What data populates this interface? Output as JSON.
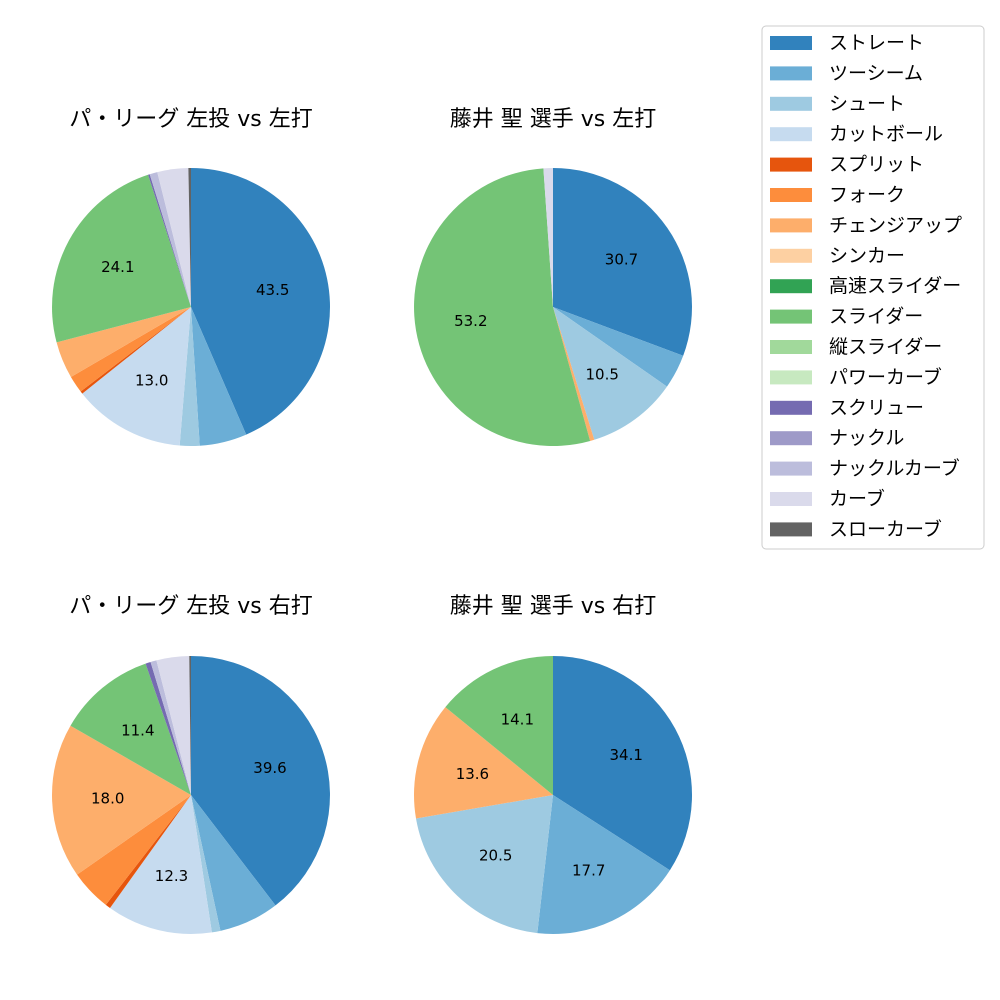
{
  "chart_data": [
    {
      "type": "pie",
      "title": "パ・リーグ 左投 vs 左打",
      "slices": [
        {
          "name": "ストレート",
          "value": 43.5,
          "label": "43.5"
        },
        {
          "name": "ツーシーム",
          "value": 5.5,
          "label": ""
        },
        {
          "name": "シュート",
          "value": 2.3,
          "label": ""
        },
        {
          "name": "カットボール",
          "value": 13.0,
          "label": "13.0"
        },
        {
          "name": "スプリット",
          "value": 0.3,
          "label": ""
        },
        {
          "name": "フォーク",
          "value": 2.0,
          "label": ""
        },
        {
          "name": "チェンジアップ",
          "value": 4.3,
          "label": ""
        },
        {
          "name": "スライダー",
          "value": 24.1,
          "label": "24.1"
        },
        {
          "name": "スクリュー",
          "value": 0.2,
          "label": ""
        },
        {
          "name": "ナックルカーブ",
          "value": 0.9,
          "label": ""
        },
        {
          "name": "カーブ",
          "value": 3.6,
          "label": ""
        },
        {
          "name": "スローカーブ",
          "value": 0.3,
          "label": ""
        }
      ]
    },
    {
      "type": "pie",
      "title": "藤井 聖 選手 vs 左打",
      "slices": [
        {
          "name": "ストレート",
          "value": 30.7,
          "label": "30.7"
        },
        {
          "name": "ツーシーム",
          "value": 4.0,
          "label": ""
        },
        {
          "name": "シュート",
          "value": 10.5,
          "label": "10.5"
        },
        {
          "name": "チェンジアップ",
          "value": 0.5,
          "label": ""
        },
        {
          "name": "スライダー",
          "value": 53.2,
          "label": "53.2"
        },
        {
          "name": "カーブ",
          "value": 1.1,
          "label": ""
        }
      ]
    },
    {
      "type": "pie",
      "title": "パ・リーグ 左投 vs 右打",
      "slices": [
        {
          "name": "ストレート",
          "value": 39.6,
          "label": "39.6"
        },
        {
          "name": "ツーシーム",
          "value": 7.0,
          "label": ""
        },
        {
          "name": "シュート",
          "value": 1.0,
          "label": ""
        },
        {
          "name": "カットボール",
          "value": 12.3,
          "label": "12.3"
        },
        {
          "name": "スプリット",
          "value": 0.6,
          "label": ""
        },
        {
          "name": "フォーク",
          "value": 4.8,
          "label": ""
        },
        {
          "name": "チェンジアップ",
          "value": 18.0,
          "label": "18.0"
        },
        {
          "name": "スライダー",
          "value": 11.4,
          "label": "11.4"
        },
        {
          "name": "スクリュー",
          "value": 0.6,
          "label": ""
        },
        {
          "name": "ナックルカーブ",
          "value": 0.7,
          "label": ""
        },
        {
          "name": "カーブ",
          "value": 3.8,
          "label": ""
        },
        {
          "name": "スローカーブ",
          "value": 0.2,
          "label": ""
        }
      ]
    },
    {
      "type": "pie",
      "title": "藤井 聖 選手 vs 右打",
      "slices": [
        {
          "name": "ストレート",
          "value": 34.1,
          "label": "34.1"
        },
        {
          "name": "ツーシーム",
          "value": 17.7,
          "label": "17.7"
        },
        {
          "name": "シュート",
          "value": 20.5,
          "label": "20.5"
        },
        {
          "name": "チェンジアップ",
          "value": 13.6,
          "label": "13.6"
        },
        {
          "name": "スライダー",
          "value": 14.1,
          "label": "14.1"
        }
      ]
    }
  ],
  "legend": {
    "placement": "top-right",
    "entries": [
      {
        "name": "ストレート",
        "color": "#3182bd"
      },
      {
        "name": "ツーシーム",
        "color": "#6baed6"
      },
      {
        "name": "シュート",
        "color": "#9ecae1"
      },
      {
        "name": "カットボール",
        "color": "#c6dbef"
      },
      {
        "name": "スプリット",
        "color": "#e6550d"
      },
      {
        "name": "フォーク",
        "color": "#fd8d3c"
      },
      {
        "name": "チェンジアップ",
        "color": "#fdae6b"
      },
      {
        "name": "シンカー",
        "color": "#fdd0a2"
      },
      {
        "name": "高速スライダー",
        "color": "#31a354"
      },
      {
        "name": "スライダー",
        "color": "#74c476"
      },
      {
        "name": "縦スライダー",
        "color": "#a1d99b"
      },
      {
        "name": "パワーカーブ",
        "color": "#c7e9c0"
      },
      {
        "name": "スクリュー",
        "color": "#756bb1"
      },
      {
        "name": "ナックル",
        "color": "#9e9ac8"
      },
      {
        "name": "ナックルカーブ",
        "color": "#bcbddc"
      },
      {
        "name": "カーブ",
        "color": "#dadaeb"
      },
      {
        "name": "スローカーブ",
        "color": "#636363"
      }
    ]
  }
}
